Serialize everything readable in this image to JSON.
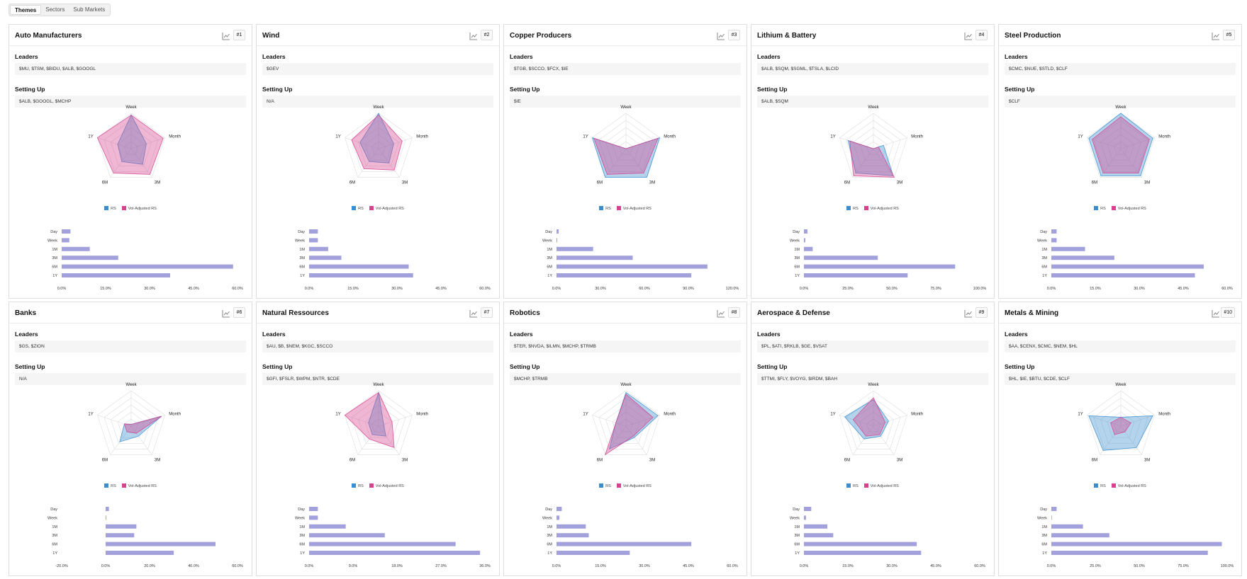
{
  "tabs": [
    {
      "label": "Themes",
      "active": true
    },
    {
      "label": "Sectors",
      "active": false
    },
    {
      "label": "Sub Markets",
      "active": false
    }
  ],
  "labels": {
    "leaders": "Leaders",
    "setting_up": "Setting Up",
    "legend_rs": "RS",
    "legend_vol": "Vol-Adjusted RS",
    "radar_axes": [
      "Week",
      "Month",
      "3M",
      "6M",
      "1Y"
    ],
    "bar_categories": [
      "Day",
      "Week",
      "1M",
      "3M",
      "6M",
      "1Y"
    ]
  },
  "colors": {
    "rs": "#3a8ed0",
    "vol": "#d6428e",
    "bar": "#a3a1db",
    "grid": "#dddddd"
  },
  "cards": [
    {
      "title": "Auto Manufacturers",
      "rank": "#1",
      "leaders": "$MU, $TSM, $BIDU, $ALB, $GOOGL",
      "setting_up": "$ALB, $GOOGL, $MCHP",
      "radar_rs": [
        0.95,
        0.45,
        0.55,
        0.45,
        0.4
      ],
      "radar_vol": [
        0.95,
        0.95,
        0.9,
        0.85,
        1.0
      ],
      "bars": [
        3.0,
        2.6,
        9.6,
        19.3,
        58.5,
        37.0
      ],
      "axis": {
        "min": 0,
        "max": 60,
        "ticks": [
          "0.0%",
          "15.0%",
          "30.0%",
          "45.0%",
          "60.0%"
        ]
      }
    },
    {
      "title": "Wind",
      "rank": "#2",
      "leaders": "$GEV",
      "setting_up": "N/A",
      "radar_rs": [
        1.0,
        0.45,
        0.5,
        0.45,
        0.55
      ],
      "radar_vol": [
        0.95,
        0.7,
        0.75,
        0.7,
        0.8
      ],
      "bars": [
        3.0,
        3.0,
        6.5,
        11.0,
        34.0,
        35.5
      ],
      "axis": {
        "min": 0,
        "max": 60,
        "ticks": [
          "0.0%",
          "15.0%",
          "30.0%",
          "45.0%",
          "60.0%"
        ]
      }
    },
    {
      "title": "Copper Producers",
      "rank": "#3",
      "leaders": "$TGB, $SCCO, $FCX, $IE",
      "setting_up": "$IE",
      "radar_rs": [
        0.0,
        1.0,
        1.0,
        1.0,
        1.0
      ],
      "radar_vol": [
        0.0,
        0.95,
        0.85,
        0.9,
        0.95
      ],
      "bars": [
        1.5,
        0.5,
        25.0,
        52.0,
        103.0,
        92.0
      ],
      "axis": {
        "min": 0,
        "max": 120,
        "ticks": [
          "0.0%",
          "30.0%",
          "60.0%",
          "90.0%",
          "120.0%"
        ]
      }
    },
    {
      "title": "Lithium & Battery",
      "rank": "#4",
      "leaders": "$ALB, $SQM, $SGML, $TSLA, $LCID",
      "setting_up": "$ALB, $SQM",
      "radar_rs": [
        0.0,
        0.3,
        0.95,
        0.85,
        0.75
      ],
      "radar_vol": [
        0.0,
        0.15,
        1.0,
        0.95,
        0.7
      ],
      "bars": [
        2.0,
        0.8,
        5.0,
        42.0,
        86.0,
        59.0
      ],
      "axis": {
        "min": 0,
        "max": 100,
        "ticks": [
          "0.0%",
          "25.0%",
          "50.0%",
          "75.0%",
          "100.0%"
        ]
      }
    },
    {
      "title": "Steel Production",
      "rank": "#5",
      "leaders": "$CMC, $NUE, $STLD, $CLF",
      "setting_up": "$CLF",
      "radar_rs": [
        1.0,
        0.95,
        0.95,
        0.95,
        0.95
      ],
      "radar_vol": [
        0.9,
        0.85,
        0.85,
        0.85,
        0.85
      ],
      "bars": [
        1.8,
        1.8,
        11.5,
        21.5,
        52.0,
        49.0
      ],
      "axis": {
        "min": 0,
        "max": 60,
        "ticks": [
          "0.0%",
          "15.0%",
          "30.0%",
          "45.0%",
          "60.0%"
        ]
      }
    },
    {
      "title": "Banks",
      "rank": "#6",
      "leaders": "$GS, $ZION",
      "setting_up": "N/A",
      "radar_rs": [
        0.05,
        0.9,
        0.35,
        0.55,
        0.2
      ],
      "radar_vol": [
        0.05,
        0.9,
        0.25,
        0.2,
        0.2
      ],
      "bars": [
        1.5,
        0.3,
        14.0,
        13.0,
        50.0,
        31.0
      ],
      "axis": {
        "min": -20,
        "max": 60,
        "ticks": [
          "-20.0%",
          "0.0%",
          "20.0%",
          "40.0%",
          "60.0%"
        ]
      }
    },
    {
      "title": "Natural Ressources",
      "rank": "#7",
      "leaders": "$AU, $B, $NEM, $KGC, $SCCO",
      "setting_up": "$GFI, $FSLR, $WPM, $NTR, $CDE",
      "radar_rs": [
        0.95,
        0.15,
        0.35,
        0.3,
        0.3
      ],
      "radar_vol": [
        0.95,
        0.4,
        0.75,
        0.45,
        1.0
      ],
      "bars": [
        1.8,
        1.8,
        7.5,
        15.5,
        30.0,
        35.0
      ],
      "axis": {
        "min": 0,
        "max": 36,
        "ticks": [
          "0.0%",
          "9.0%",
          "18.0%",
          "27.0%",
          "36.0%"
        ]
      }
    },
    {
      "title": "Robotics",
      "rank": "#8",
      "leaders": "$TER, $NVDA, $ILMN, $MCHP, $TRMB",
      "setting_up": "$MCHP, $TRMB",
      "radar_rs": [
        0.95,
        0.95,
        0.4,
        0.8,
        0.3
      ],
      "radar_vol": [
        0.9,
        0.8,
        0.35,
        1.0,
        0.3
      ],
      "bars": [
        1.8,
        1.0,
        10.0,
        11.0,
        46.0,
        25.0
      ],
      "axis": {
        "min": 0,
        "max": 60,
        "ticks": [
          "0.0%",
          "15.0%",
          "30.0%",
          "45.0%",
          "60.0%"
        ]
      }
    },
    {
      "title": "Aerospace & Defense",
      "rank": "#9",
      "leaders": "$PL, $ATI, $RKLB, $GE, $VSAT",
      "setting_up": "$TTMI, $FLY, $VOYG, $IRDM, $BAH",
      "radar_rs": [
        0.75,
        0.45,
        0.35,
        0.45,
        0.85
      ],
      "radar_vol": [
        0.8,
        0.35,
        0.3,
        0.35,
        0.6
      ],
      "bars": [
        2.5,
        0.7,
        8.0,
        10.0,
        38.5,
        40.0
      ],
      "axis": {
        "min": 0,
        "max": 60,
        "ticks": [
          "0.0%",
          "15.0%",
          "30.0%",
          "45.0%",
          "60.0%"
        ]
      }
    },
    {
      "title": "Metals & Mining",
      "rank": "#10",
      "leaders": "$AA, $CENX, $CMC, $NEM, $HL",
      "setting_up": "$HL, $IE, $BTU, $CDE, $CLF",
      "radar_rs": [
        0.25,
        0.95,
        0.75,
        0.85,
        0.95
      ],
      "radar_vol": [
        0.25,
        0.3,
        0.2,
        0.3,
        0.3
      ],
      "bars": [
        3.0,
        0.3,
        18.0,
        33.0,
        97.0,
        89.0
      ],
      "axis": {
        "min": 0,
        "max": 100,
        "ticks": [
          "0.0%",
          "25.0%",
          "50.0%",
          "75.0%",
          "100.0%"
        ]
      }
    }
  ]
}
